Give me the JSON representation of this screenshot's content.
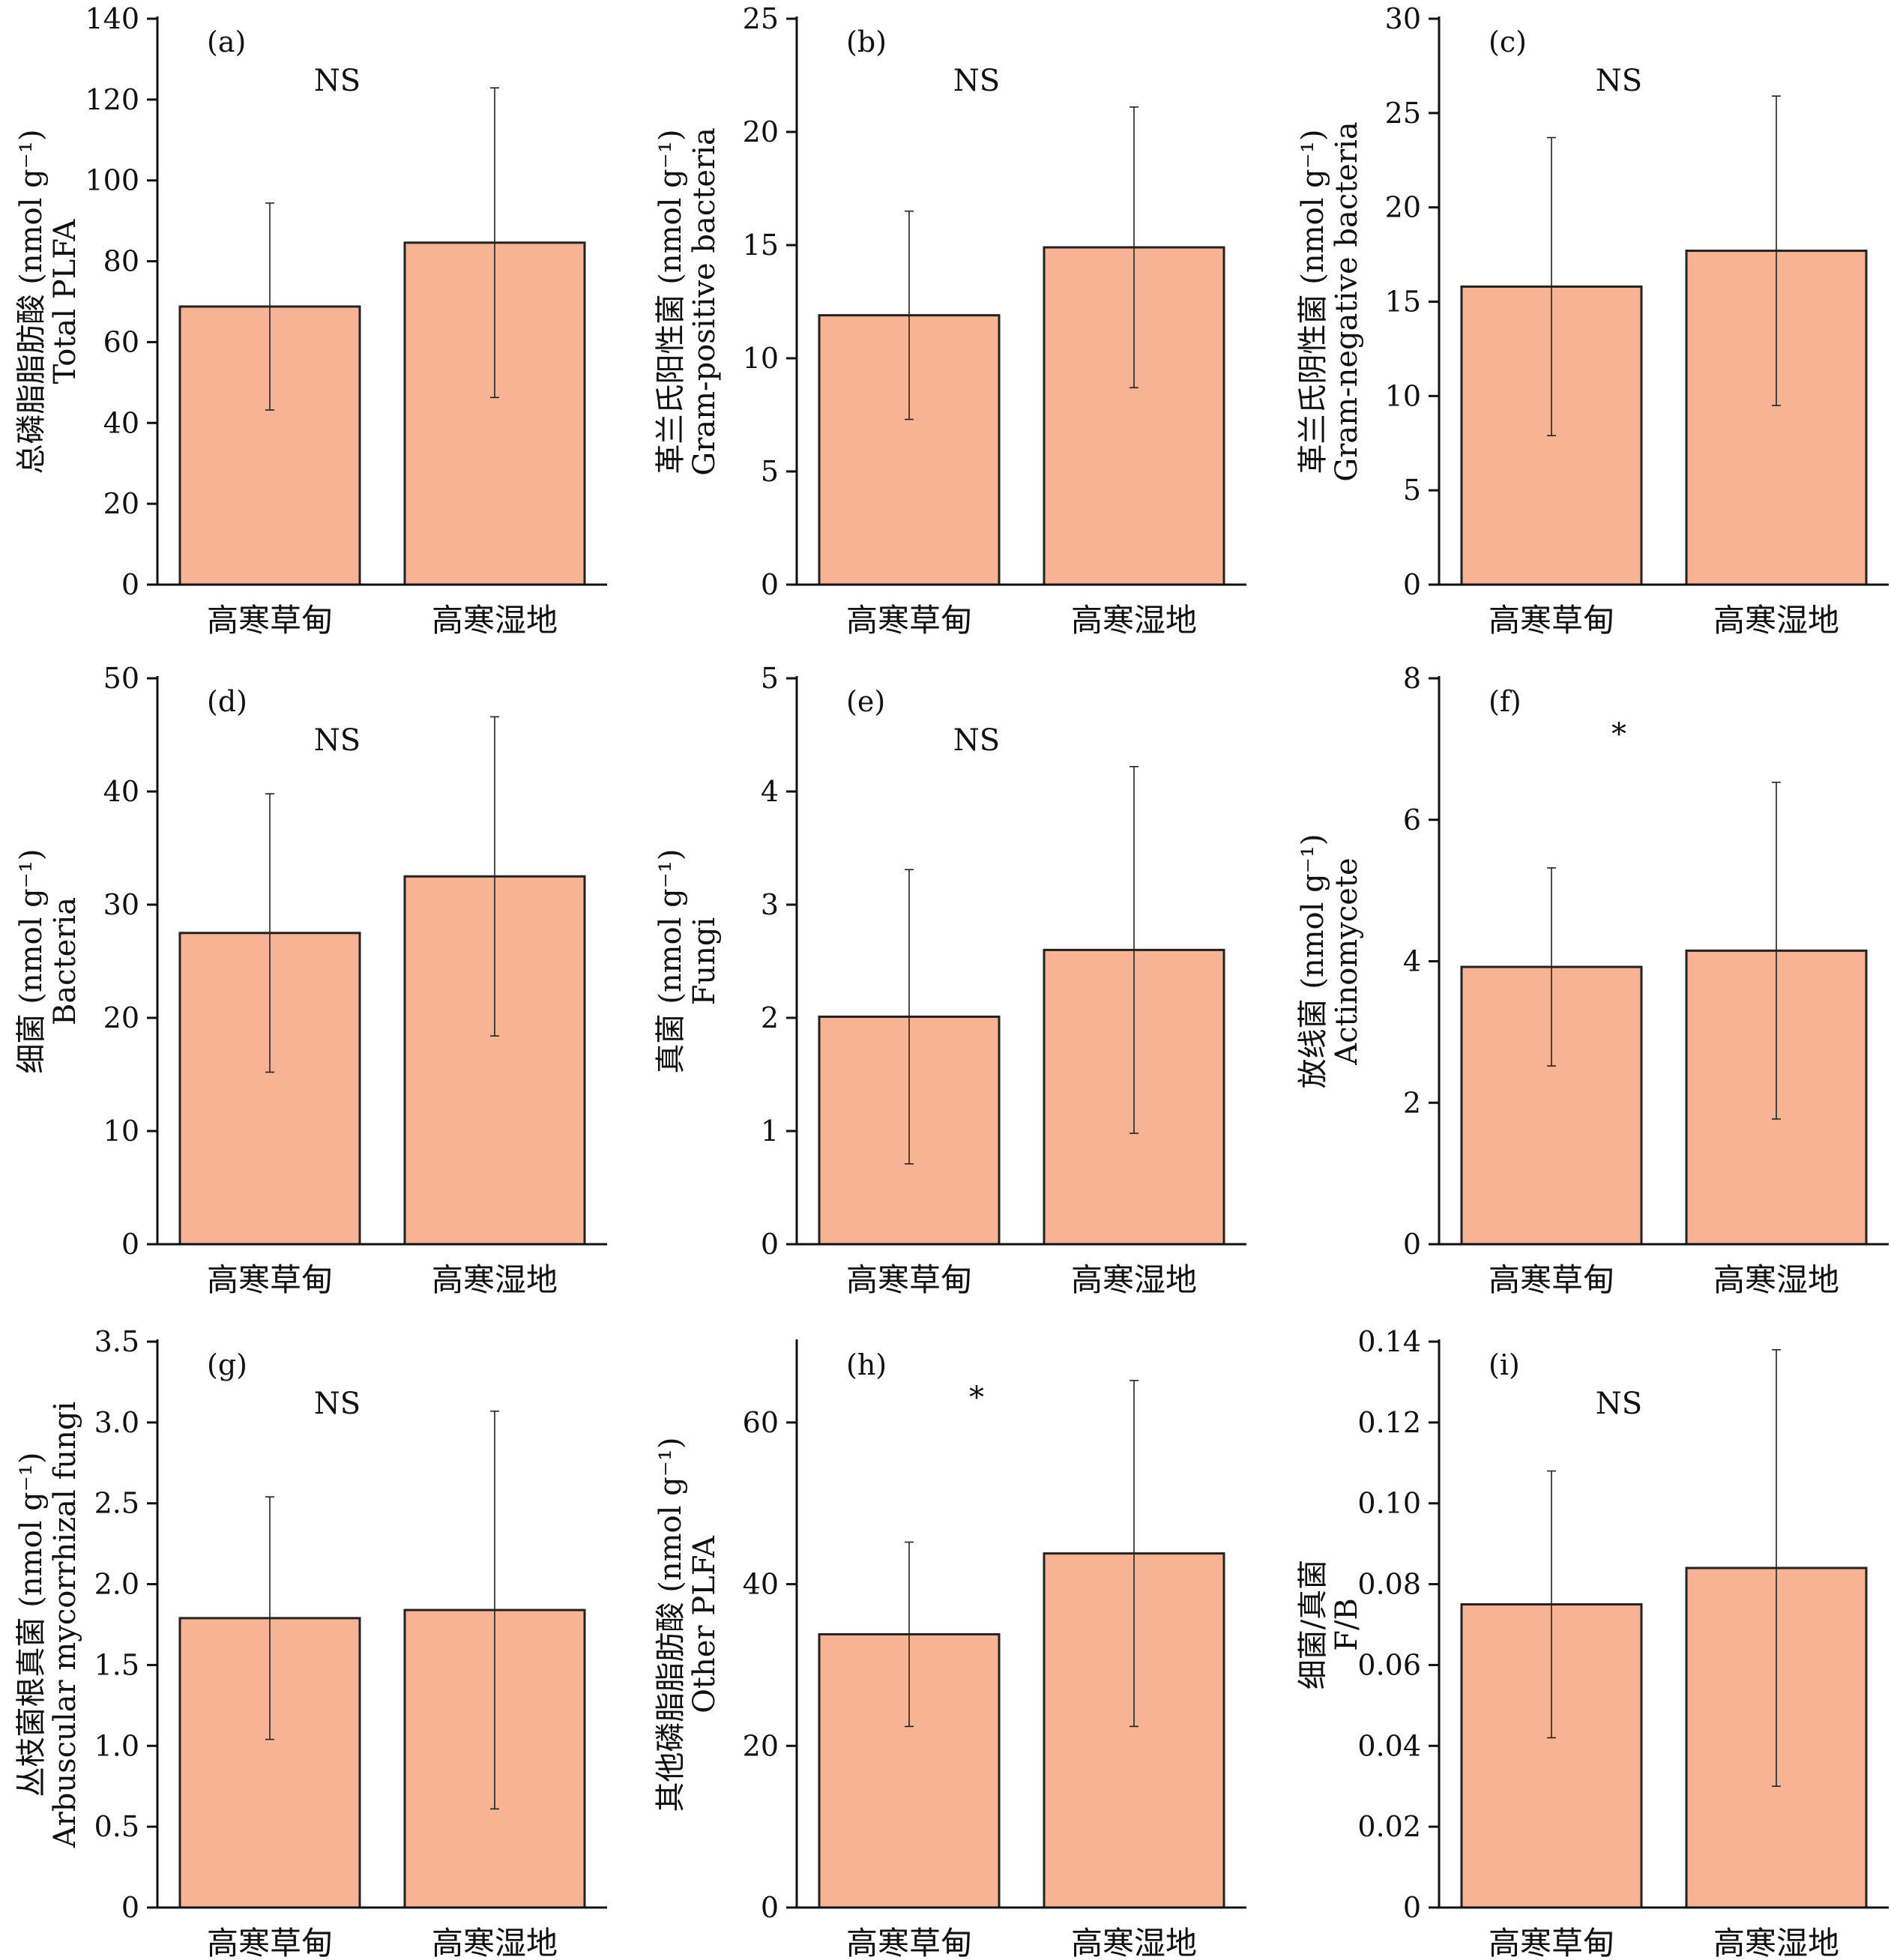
{
  "colors": {
    "bar_fill": "#f8b394",
    "bar_stroke": "#222222",
    "axis": "#111111",
    "error_bar": "#222222"
  },
  "chart_data": [
    {
      "type": "bar",
      "panel": "(a)",
      "significance": "NS",
      "ylabel_cn": "总磷脂脂肪酸 (nmol g⁻¹)",
      "ylabel_en": "Total PLFA",
      "categories": [
        "高寒草甸",
        "高寒湿地"
      ],
      "values": [
        68.8,
        84.6
      ],
      "errors": [
        25.6,
        38.3
      ],
      "ylim": [
        0,
        140
      ],
      "yticks": [
        0,
        20,
        40,
        60,
        80,
        100,
        120,
        140
      ],
      "ytick_labels": [
        "0",
        "20",
        "40",
        "60",
        "80",
        "100",
        "120",
        "140"
      ]
    },
    {
      "type": "bar",
      "panel": "(b)",
      "significance": "NS",
      "ylabel_cn": "革兰氏阳性菌 (nmol g⁻¹)",
      "ylabel_en": "Gram-positive bacteria",
      "categories": [
        "高寒草甸",
        "高寒湿地"
      ],
      "values": [
        11.9,
        14.9
      ],
      "errors": [
        4.6,
        6.2
      ],
      "ylim": [
        0,
        25
      ],
      "yticks": [
        0,
        5,
        10,
        15,
        20,
        25
      ],
      "ytick_labels": [
        "0",
        "5",
        "10",
        "15",
        "20",
        "25"
      ]
    },
    {
      "type": "bar",
      "panel": "(c)",
      "significance": "NS",
      "ylabel_cn": "革兰氏阴性菌 (nmol g⁻¹)",
      "ylabel_en": "Gram-negative bacteria",
      "categories": [
        "高寒草甸",
        "高寒湿地"
      ],
      "values": [
        15.8,
        17.7
      ],
      "errors": [
        7.9,
        8.2
      ],
      "ylim": [
        0,
        30
      ],
      "yticks": [
        0,
        5,
        10,
        15,
        20,
        25,
        30
      ],
      "ytick_labels": [
        "0",
        "5",
        "10",
        "15",
        "20",
        "25",
        "30"
      ]
    },
    {
      "type": "bar",
      "panel": "(d)",
      "significance": "NS",
      "ylabel_cn": "细菌 (nmol g⁻¹)",
      "ylabel_en": "Bacteria",
      "categories": [
        "高寒草甸",
        "高寒湿地"
      ],
      "values": [
        27.5,
        32.5
      ],
      "errors": [
        12.3,
        14.1
      ],
      "ylim": [
        0,
        50
      ],
      "yticks": [
        0,
        10,
        20,
        30,
        40,
        50
      ],
      "ytick_labels": [
        "0",
        "10",
        "20",
        "30",
        "40",
        "50"
      ]
    },
    {
      "type": "bar",
      "panel": "(e)",
      "significance": "NS",
      "ylabel_cn": "真菌 (nmol g⁻¹)",
      "ylabel_en": "Fungi",
      "categories": [
        "高寒草甸",
        "高寒湿地"
      ],
      "values": [
        2.01,
        2.6
      ],
      "errors": [
        1.3,
        1.62
      ],
      "ylim": [
        0,
        5
      ],
      "yticks": [
        0,
        1,
        2,
        3,
        4,
        5
      ],
      "ytick_labels": [
        "0",
        "1",
        "2",
        "3",
        "4",
        "5"
      ]
    },
    {
      "type": "bar",
      "panel": "(f)",
      "significance": "*",
      "ylabel_cn": "放线菌 (nmol g⁻¹)",
      "ylabel_en": "Actinomycete",
      "categories": [
        "高寒草甸",
        "高寒湿地"
      ],
      "values": [
        3.92,
        4.15
      ],
      "errors": [
        1.4,
        2.38
      ],
      "ylim": [
        0,
        8
      ],
      "yticks": [
        0,
        2,
        4,
        6,
        8
      ],
      "ytick_labels": [
        "0",
        "2",
        "4",
        "6",
        "8"
      ]
    },
    {
      "type": "bar",
      "panel": "(g)",
      "significance": "NS",
      "ylabel_cn": "丛枝菌根真菌 (nmol g⁻¹)",
      "ylabel_en": "Arbuscular mycorrhizal fungi",
      "categories": [
        "高寒草甸",
        "高寒湿地"
      ],
      "values": [
        1.79,
        1.84
      ],
      "errors": [
        0.75,
        1.23
      ],
      "ylim": [
        0,
        3.5
      ],
      "yticks": [
        0,
        0.5,
        1.0,
        1.5,
        2.0,
        2.5,
        3.0,
        3.5
      ],
      "ytick_labels": [
        "0",
        "0.5",
        "1.0",
        "1.5",
        "2.0",
        "2.5",
        "3.0",
        "3.5"
      ]
    },
    {
      "type": "bar",
      "panel": "(h)",
      "significance": "*",
      "ylabel_cn": "其他磷脂脂肪酸 (nmol g⁻¹)",
      "ylabel_en": "Other PLFA",
      "categories": [
        "高寒草甸",
        "高寒湿地"
      ],
      "values": [
        33.8,
        43.8
      ],
      "errors": [
        11.4,
        21.4
      ],
      "ylim": [
        0,
        70
      ],
      "yticks": [
        0,
        20,
        40,
        60
      ],
      "ytick_labels": [
        "0",
        "20",
        "40",
        "60"
      ]
    },
    {
      "type": "bar",
      "panel": "(i)",
      "significance": "NS",
      "ylabel_cn": "细菌/真菌",
      "ylabel_en": "F/B",
      "categories": [
        "高寒草甸",
        "高寒湿地"
      ],
      "values": [
        0.075,
        0.084
      ],
      "errors": [
        0.033,
        0.054
      ],
      "ylim": [
        0,
        0.14
      ],
      "yticks": [
        0,
        0.02,
        0.04,
        0.06,
        0.08,
        0.1,
        0.12,
        0.14
      ],
      "ytick_labels": [
        "0",
        "0.02",
        "0.04",
        "0.06",
        "0.08",
        "0.10",
        "0.12",
        "0.14"
      ]
    }
  ]
}
